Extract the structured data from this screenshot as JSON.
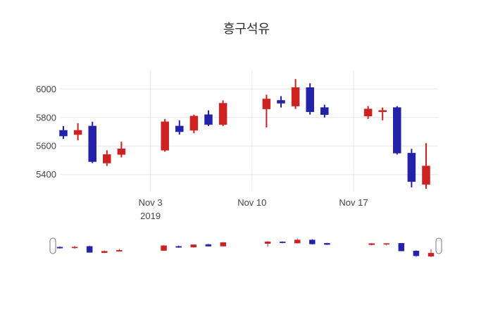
{
  "chart_data": {
    "type": "candlestick",
    "title": "흥구석유",
    "y_ticks": [
      5400,
      5600,
      5800,
      6000
    ],
    "ylim": [
      5280,
      6130
    ],
    "grid": true,
    "legend": null,
    "rangeslider": true,
    "increasing_color": "#cc2222",
    "decreasing_color": "#2323aa",
    "grid_color": "#e6e6e6",
    "text_color": "#444444",
    "x_axis": {
      "ticks": [
        {
          "label": "Nov 3",
          "sublabel": "2019",
          "day": 6
        },
        {
          "label": "Nov 10",
          "sublabel": "",
          "day": 13
        },
        {
          "label": "Nov 17",
          "sublabel": "",
          "day": 20
        }
      ]
    },
    "candles": [
      {
        "date": "2019-10-28",
        "day": 0,
        "open": 5710,
        "high": 5740,
        "low": 5650,
        "close": 5670
      },
      {
        "date": "2019-10-29",
        "day": 1,
        "open": 5680,
        "high": 5760,
        "low": 5640,
        "close": 5710
      },
      {
        "date": "2019-10-30",
        "day": 2,
        "open": 5740,
        "high": 5770,
        "low": 5480,
        "close": 5490
      },
      {
        "date": "2019-10-31",
        "day": 3,
        "open": 5480,
        "high": 5570,
        "low": 5460,
        "close": 5540
      },
      {
        "date": "2019-11-01",
        "day": 4,
        "open": 5540,
        "high": 5630,
        "low": 5520,
        "close": 5580
      },
      {
        "date": "2019-11-04",
        "day": 7,
        "open": 5570,
        "high": 5790,
        "low": 5560,
        "close": 5770
      },
      {
        "date": "2019-11-05",
        "day": 8,
        "open": 5740,
        "high": 5780,
        "low": 5680,
        "close": 5700
      },
      {
        "date": "2019-11-06",
        "day": 9,
        "open": 5710,
        "high": 5820,
        "low": 5690,
        "close": 5810
      },
      {
        "date": "2019-11-07",
        "day": 10,
        "open": 5820,
        "high": 5850,
        "low": 5740,
        "close": 5750
      },
      {
        "date": "2019-11-08",
        "day": 11,
        "open": 5750,
        "high": 5920,
        "low": 5740,
        "close": 5900
      },
      {
        "date": "2019-11-11",
        "day": 14,
        "open": 5860,
        "high": 5960,
        "low": 5730,
        "close": 5930
      },
      {
        "date": "2019-11-12",
        "day": 15,
        "open": 5920,
        "high": 5950,
        "low": 5870,
        "close": 5900
      },
      {
        "date": "2019-11-13",
        "day": 16,
        "open": 5880,
        "high": 6070,
        "low": 5860,
        "close": 6010
      },
      {
        "date": "2019-11-14",
        "day": 17,
        "open": 6010,
        "high": 6040,
        "low": 5820,
        "close": 5840
      },
      {
        "date": "2019-11-15",
        "day": 18,
        "open": 5870,
        "high": 5890,
        "low": 5800,
        "close": 5820
      },
      {
        "date": "2019-11-18",
        "day": 21,
        "open": 5810,
        "high": 5880,
        "low": 5790,
        "close": 5860
      },
      {
        "date": "2019-11-19",
        "day": 22,
        "open": 5840,
        "high": 5870,
        "low": 5780,
        "close": 5850
      },
      {
        "date": "2019-11-20",
        "day": 23,
        "open": 5870,
        "high": 5880,
        "low": 5540,
        "close": 5550
      },
      {
        "date": "2019-11-21",
        "day": 24,
        "open": 5550,
        "high": 5580,
        "low": 5310,
        "close": 5350
      },
      {
        "date": "2019-11-22",
        "day": 25,
        "open": 5330,
        "high": 5620,
        "low": 5300,
        "close": 5460
      }
    ]
  }
}
